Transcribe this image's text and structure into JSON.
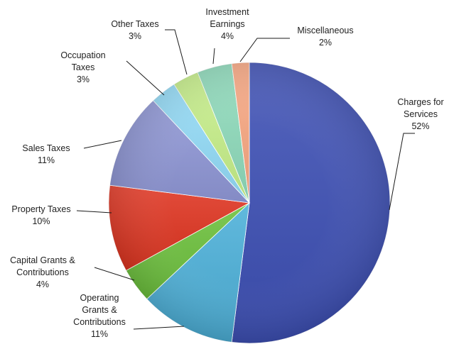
{
  "chart_data": {
    "type": "pie",
    "title": "",
    "slices": [
      {
        "label": [
          "Charges for",
          "Services"
        ],
        "pct": "52%",
        "value": 52,
        "color": "#3d4fb4"
      },
      {
        "label": [
          "Operating",
          "Grants &",
          "Contributions"
        ],
        "pct": "11%",
        "value": 11,
        "color": "#4cb0d8"
      },
      {
        "label": [
          "Capital Grants &",
          "Contributions"
        ],
        "pct": "4%",
        "value": 4,
        "color": "#6cc03c"
      },
      {
        "label": [
          "Property Taxes"
        ],
        "pct": "10%",
        "value": 10,
        "color": "#df3420"
      },
      {
        "label": [
          "Sales Taxes"
        ],
        "pct": "11%",
        "value": 11,
        "color": "#8f97d6"
      },
      {
        "label": [
          "Occupation",
          "Taxes"
        ],
        "pct": "3%",
        "value": 3,
        "color": "#93dcf8"
      },
      {
        "label": [
          "Other Taxes"
        ],
        "pct": "3%",
        "value": 3,
        "color": "#c7f08a"
      },
      {
        "label": [
          "Investment",
          "Earnings"
        ],
        "pct": "4%",
        "value": 4,
        "color": "#8fdcbc"
      },
      {
        "label": [
          "Miscellaneous"
        ],
        "pct": "2%",
        "value": 2,
        "color": "#f9a882"
      }
    ]
  }
}
